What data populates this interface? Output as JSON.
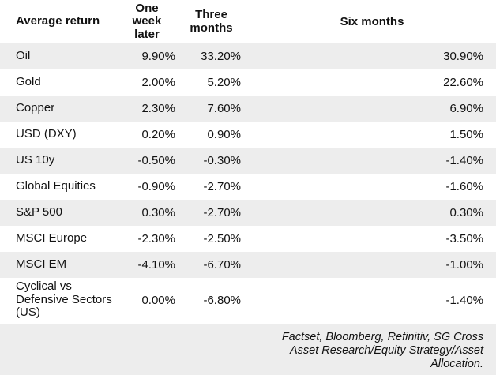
{
  "table": {
    "columns": [
      "Average return",
      "One week later",
      "Three months",
      "Six months"
    ],
    "rows": [
      {
        "label": "Oil",
        "values": [
          "9.90%",
          "33.20%",
          "30.90%"
        ]
      },
      {
        "label": "Gold",
        "values": [
          "2.00%",
          "5.20%",
          "22.60%"
        ]
      },
      {
        "label": "Copper",
        "values": [
          "2.30%",
          "7.60%",
          "6.90%"
        ]
      },
      {
        "label": "USD (DXY)",
        "values": [
          "0.20%",
          "0.90%",
          "1.50%"
        ]
      },
      {
        "label": "US 10y",
        "values": [
          "-0.50%",
          "-0.30%",
          "-1.40%"
        ]
      },
      {
        "label": "Global Equities",
        "values": [
          "-0.90%",
          "-2.70%",
          "-1.60%"
        ]
      },
      {
        "label": "S&P 500",
        "values": [
          "0.30%",
          "-2.70%",
          "0.30%"
        ]
      },
      {
        "label": "MSCI Europe",
        "values": [
          "-2.30%",
          "-2.50%",
          "-3.50%"
        ]
      },
      {
        "label": "MSCI EM",
        "values": [
          "-4.10%",
          "-6.70%",
          "-1.00%"
        ]
      },
      {
        "label": "Cyclical vs Defensive Sectors (US)",
        "values": [
          "0.00%",
          "-6.80%",
          "-1.40%"
        ]
      }
    ],
    "source": "Factset, Bloomberg, Refinitiv, SG Cross Asset Research/Equity Strategy/Asset Allocation."
  },
  "colors": {
    "stripe": "#ededed",
    "text": "#121212",
    "background": "#ffffff"
  },
  "chart_data": {
    "type": "table",
    "title": "Average return",
    "columns": [
      "Average return",
      "One week later",
      "Three months",
      "Six months"
    ],
    "row_labels": [
      "Oil",
      "Gold",
      "Copper",
      "USD (DXY)",
      "US 10y",
      "Global Equities",
      "S&P 500",
      "MSCI Europe",
      "MSCI EM",
      "Cyclical vs Defensive Sectors (US)"
    ],
    "series": [
      {
        "name": "One week later",
        "values_pct": [
          9.9,
          2.0,
          2.3,
          0.2,
          -0.5,
          -0.9,
          0.3,
          -2.3,
          -4.1,
          0.0
        ]
      },
      {
        "name": "Three months",
        "values_pct": [
          33.2,
          5.2,
          7.6,
          0.9,
          -0.3,
          -2.7,
          -2.7,
          -2.5,
          -6.7,
          -6.8
        ]
      },
      {
        "name": "Six months",
        "values_pct": [
          30.9,
          22.6,
          6.9,
          1.5,
          -1.4,
          -1.6,
          0.3,
          -3.5,
          -1.0,
          -1.4
        ]
      }
    ],
    "annotations": [
      "Factset, Bloomberg, Refinitiv, SG Cross Asset Research/Equity Strategy/Asset Allocation."
    ]
  }
}
